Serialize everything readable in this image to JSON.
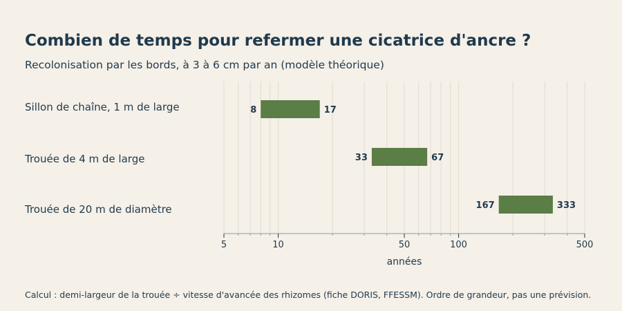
{
  "title": "Combien de temps pour refermer une cicatrice d'ancre ?",
  "subtitle": "Recolonisation par les bords, à 3 à 6 cm par an (modèle théorique)",
  "note": "Calcul : demi-largeur de la trouée ÷ vitesse d'avancée des rhizomes (fiche DORIS, FFESSM). Ordre de grandeur, pas une prévision.",
  "chart_data": {
    "type": "bar",
    "orientation": "horizontal-range",
    "categories": [
      "Sillon de chaîne, 1 m de large",
      "Trouée de 4 m de large",
      "Trouée de 20 m de diamètre"
    ],
    "ranges": [
      {
        "low": 8,
        "high": 17,
        "low_label": "8",
        "high_label": "17"
      },
      {
        "low": 33,
        "high": 67,
        "low_label": "33",
        "high_label": "67"
      },
      {
        "low": 167,
        "high": 333,
        "low_label": "167",
        "high_label": "333"
      }
    ],
    "xlabel": "années",
    "xscale": "log",
    "xlim": [
      5,
      500
    ],
    "xticks": [
      5,
      10,
      50,
      100,
      500
    ],
    "xtick_labels": [
      "5",
      "10",
      "50",
      "100",
      "500"
    ],
    "grid": true,
    "bar_color": "#5b7d46",
    "grid_color": "#e2dcd2",
    "axis_color": "#8a9aa5"
  }
}
